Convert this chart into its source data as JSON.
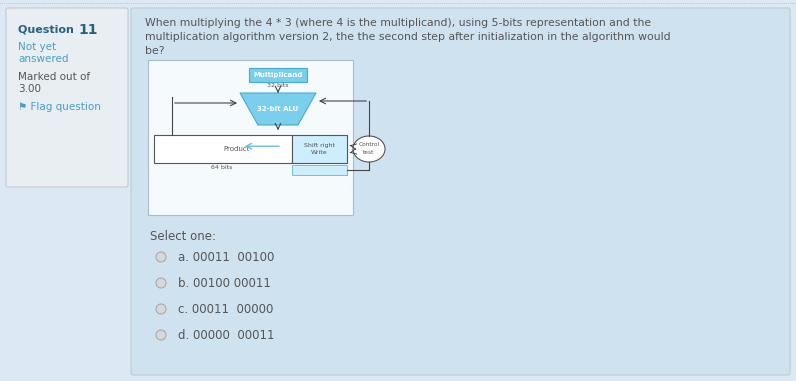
{
  "bg_color": "#cfe2f0",
  "outer_bg": "#dce8f3",
  "left_panel_bg": "#e8eef2",
  "left_panel_border": "#c0ccd4",
  "right_panel_bg": "#cfe2f0",
  "question_bold": "Question ",
  "question_num": "11",
  "question_sub1": "Not yet",
  "question_sub2": "answered",
  "marked_label": "Marked out of",
  "marked_value": "3.00",
  "flag_label": "⚑ Flag question",
  "question_text_line1": "When multiplying the 4 * 3 (where 4 is the multiplicand), using 5-bits representation and the",
  "question_text_line2": "multiplication algorithm version 2, the the second step after initialization in the algorithm would",
  "question_text_line3": "be?",
  "select_one": "Select one:",
  "options": [
    "a. 00011  00100",
    "b. 00100 00011",
    "c. 00011  00000",
    "d. 00000  00011"
  ],
  "diagram_bg": "#f5fafd",
  "alu_color": "#7acfed",
  "multiplicand_box_color": "#7acfed",
  "shift_box_color": "#cceeff",
  "arrow_color": "#444444",
  "blue_arrow_color": "#6bbfdf",
  "text_color_dark": "#555555",
  "text_color_blue": "#4a9fc0",
  "text_color_qnum": "#2a6080",
  "radio_fill": "#d8d8d8",
  "radio_edge": "#aaaaaa"
}
